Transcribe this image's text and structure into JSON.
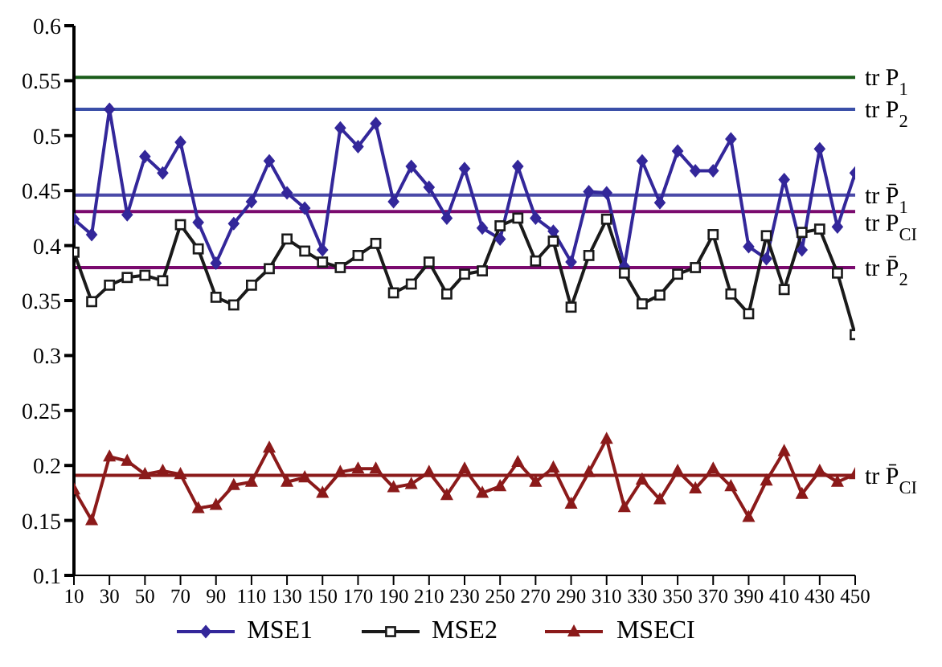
{
  "chart_data": {
    "type": "line",
    "x": [
      10,
      20,
      30,
      40,
      50,
      60,
      70,
      80,
      90,
      100,
      110,
      120,
      130,
      140,
      150,
      160,
      170,
      180,
      190,
      200,
      210,
      220,
      230,
      240,
      250,
      260,
      270,
      280,
      290,
      300,
      310,
      320,
      330,
      340,
      350,
      360,
      370,
      380,
      390,
      400,
      410,
      420,
      430,
      440,
      450
    ],
    "series": [
      {
        "name": "MSE1",
        "color": "#33279a",
        "marker": "diamond",
        "values": [
          0.424,
          0.41,
          0.524,
          0.428,
          0.481,
          0.466,
          0.494,
          0.421,
          0.384,
          0.42,
          0.44,
          0.477,
          0.448,
          0.434,
          0.396,
          0.507,
          0.49,
          0.511,
          0.44,
          0.472,
          0.453,
          0.425,
          0.47,
          0.416,
          0.406,
          0.472,
          0.425,
          0.413,
          0.385,
          0.449,
          0.448,
          0.381,
          0.477,
          0.439,
          0.486,
          0.468,
          0.468,
          0.497,
          0.399,
          0.388,
          0.46,
          0.396,
          0.488,
          0.417,
          0.466
        ]
      },
      {
        "name": "MSE2",
        "color": "#1a1a1a",
        "marker": "square",
        "values": [
          0.394,
          0.349,
          0.364,
          0.371,
          0.373,
          0.368,
          0.419,
          0.397,
          0.353,
          0.346,
          0.364,
          0.379,
          0.406,
          0.395,
          0.385,
          0.38,
          0.391,
          0.402,
          0.357,
          0.365,
          0.385,
          0.356,
          0.374,
          0.377,
          0.418,
          0.425,
          0.386,
          0.404,
          0.344,
          0.391,
          0.424,
          0.375,
          0.347,
          0.355,
          0.374,
          0.38,
          0.41,
          0.356,
          0.338,
          0.409,
          0.36,
          0.412,
          0.415,
          0.375,
          0.319
        ]
      },
      {
        "name": "MSECI",
        "color": "#8b1a1a",
        "marker": "triangle",
        "values": [
          0.178,
          0.15,
          0.208,
          0.204,
          0.192,
          0.195,
          0.192,
          0.161,
          0.164,
          0.182,
          0.185,
          0.216,
          0.185,
          0.189,
          0.175,
          0.194,
          0.197,
          0.197,
          0.18,
          0.183,
          0.194,
          0.173,
          0.197,
          0.175,
          0.181,
          0.203,
          0.185,
          0.198,
          0.165,
          0.194,
          0.224,
          0.162,
          0.187,
          0.169,
          0.195,
          0.179,
          0.197,
          0.181,
          0.153,
          0.186,
          0.213,
          0.174,
          0.195,
          0.185,
          0.192
        ]
      }
    ],
    "xlim": [
      10,
      450
    ],
    "xticks": [
      10,
      30,
      50,
      70,
      90,
      110,
      130,
      150,
      170,
      190,
      210,
      230,
      250,
      270,
      290,
      310,
      330,
      350,
      370,
      390,
      410,
      430,
      450
    ],
    "ylim": [
      0.1,
      0.6
    ],
    "yticks": [
      0.1,
      0.15,
      0.2,
      0.25,
      0.3,
      0.35,
      0.4,
      0.45,
      0.5,
      0.55,
      0.6
    ],
    "ref_lines": [
      {
        "axis": "y",
        "value": 0.553,
        "label": "tr P$_{1}$",
        "color": "#1a5c1a"
      },
      {
        "axis": "y",
        "value": 0.524,
        "label": "tr P$_{2}$",
        "color": "#3a4fa8"
      },
      {
        "axis": "y",
        "value": 0.446,
        "label": "tr P̄$_{1}$",
        "color": "#4a4aa8"
      },
      {
        "axis": "y",
        "value": 0.431,
        "label": "tr P$_{CI}$",
        "color": "#7a0a6e"
      },
      {
        "axis": "y",
        "value": 0.38,
        "label": "tr P̄$_{2}$",
        "color": "#7a0a6e"
      },
      {
        "axis": "y",
        "value": 0.191,
        "label": "tr P̄$_{CI}$",
        "color": "#8b1a1a"
      }
    ],
    "grid": false,
    "legend": "bottom",
    "line_style": "solid"
  }
}
